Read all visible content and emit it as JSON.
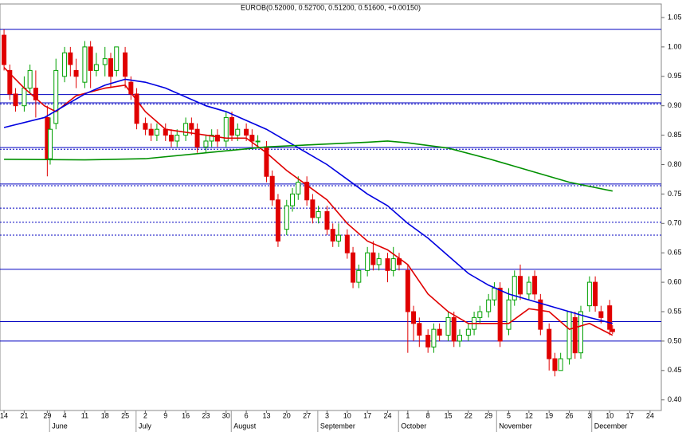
{
  "chart_data": {
    "type": "candlestick",
    "title": "EUROB(0.52000, 0.52700, 0.51200, 0.51600, +0.00150)",
    "x": [
      0,
      2,
      4,
      7,
      9,
      11,
      15,
      16,
      18,
      21,
      23,
      25,
      28,
      30,
      32,
      35,
      37,
      39,
      42,
      44,
      46,
      49,
      51,
      53,
      56,
      58,
      60,
      63,
      65,
      67,
      70,
      72,
      74,
      77,
      79,
      81,
      84,
      86,
      88,
      91,
      93,
      95,
      98,
      100,
      102,
      105,
      107,
      109,
      112,
      114,
      116,
      119,
      121,
      123,
      126,
      128,
      130,
      133,
      135,
      137,
      140,
      142,
      144,
      147,
      149,
      151,
      154,
      156,
      158,
      161,
      163,
      165,
      168,
      170,
      172,
      175,
      177,
      179,
      182,
      184,
      186,
      189,
      191,
      193,
      196,
      198,
      200,
      203,
      205,
      207,
      210,
      211
    ],
    "open": [
      1.02,
      0.96,
      0.92,
      0.9,
      0.93,
      0.93,
      0.88,
      0.81,
      0.87,
      0.95,
      0.99,
      0.96,
      0.94,
      1.0,
      0.96,
      0.97,
      0.98,
      0.96,
      0.99,
      0.94,
      0.92,
      0.87,
      0.86,
      0.85,
      0.86,
      0.85,
      0.84,
      0.85,
      0.87,
      0.86,
      0.83,
      0.84,
      0.85,
      0.84,
      0.88,
      0.85,
      0.86,
      0.85,
      0.84,
      0.83,
      0.78,
      0.74,
      0.69,
      0.73,
      0.75,
      0.77,
      0.74,
      0.71,
      0.72,
      0.69,
      0.67,
      0.68,
      0.65,
      0.6,
      0.62,
      0.65,
      0.63,
      0.64,
      0.62,
      0.64,
      0.62,
      0.55,
      0.53,
      0.51,
      0.49,
      0.52,
      0.51,
      0.54,
      0.5,
      0.51,
      0.52,
      0.54,
      0.55,
      0.57,
      0.59,
      0.52,
      0.57,
      0.61,
      0.58,
      0.61,
      0.57,
      0.52,
      0.47,
      0.45,
      0.47,
      0.54,
      0.48,
      0.56,
      0.6,
      0.55,
      0.56,
      0.52
    ],
    "high": [
      1.03,
      0.97,
      0.93,
      0.95,
      0.97,
      0.96,
      0.9,
      0.88,
      0.98,
      1.0,
      1.0,
      0.98,
      1.01,
      1.01,
      0.99,
      1.0,
      0.99,
      1.0,
      1.0,
      0.95,
      0.93,
      0.88,
      0.87,
      0.87,
      0.87,
      0.86,
      0.86,
      0.88,
      0.88,
      0.87,
      0.85,
      0.86,
      0.86,
      0.89,
      0.89,
      0.87,
      0.87,
      0.86,
      0.85,
      0.84,
      0.79,
      0.75,
      0.74,
      0.76,
      0.78,
      0.78,
      0.75,
      0.73,
      0.73,
      0.7,
      0.7,
      0.69,
      0.66,
      0.63,
      0.66,
      0.67,
      0.65,
      0.65,
      0.66,
      0.65,
      0.63,
      0.56,
      0.54,
      0.52,
      0.53,
      0.53,
      0.55,
      0.55,
      0.52,
      0.53,
      0.55,
      0.56,
      0.58,
      0.6,
      0.6,
      0.59,
      0.62,
      0.63,
      0.61,
      0.62,
      0.58,
      0.53,
      0.48,
      0.48,
      0.55,
      0.55,
      0.56,
      0.61,
      0.61,
      0.56,
      0.57,
      0.527
    ],
    "low": [
      0.96,
      0.91,
      0.89,
      0.89,
      0.92,
      0.88,
      0.78,
      0.8,
      0.86,
      0.94,
      0.95,
      0.93,
      0.93,
      0.93,
      0.95,
      0.95,
      0.93,
      0.95,
      0.93,
      0.91,
      0.86,
      0.85,
      0.84,
      0.84,
      0.84,
      0.83,
      0.83,
      0.84,
      0.85,
      0.82,
      0.82,
      0.83,
      0.83,
      0.83,
      0.84,
      0.84,
      0.84,
      0.83,
      0.83,
      0.77,
      0.73,
      0.66,
      0.68,
      0.72,
      0.74,
      0.73,
      0.7,
      0.7,
      0.68,
      0.66,
      0.66,
      0.64,
      0.59,
      0.59,
      0.61,
      0.62,
      0.62,
      0.6,
      0.61,
      0.62,
      0.48,
      0.5,
      0.49,
      0.48,
      0.48,
      0.5,
      0.5,
      0.49,
      0.49,
      0.5,
      0.51,
      0.53,
      0.54,
      0.56,
      0.49,
      0.51,
      0.56,
      0.57,
      0.57,
      0.57,
      0.51,
      0.45,
      0.44,
      0.45,
      0.46,
      0.47,
      0.47,
      0.55,
      0.55,
      0.53,
      0.51,
      0.512
    ],
    "close": [
      0.97,
      0.92,
      0.9,
      0.93,
      0.96,
      0.91,
      0.81,
      0.86,
      0.96,
      0.99,
      0.97,
      0.95,
      1.0,
      0.96,
      0.97,
      0.98,
      0.95,
      1.0,
      0.95,
      0.92,
      0.87,
      0.86,
      0.85,
      0.86,
      0.85,
      0.84,
      0.85,
      0.87,
      0.86,
      0.83,
      0.84,
      0.85,
      0.84,
      0.88,
      0.85,
      0.86,
      0.85,
      0.84,
      0.84,
      0.78,
      0.74,
      0.67,
      0.73,
      0.75,
      0.77,
      0.74,
      0.71,
      0.72,
      0.69,
      0.67,
      0.68,
      0.65,
      0.6,
      0.62,
      0.65,
      0.63,
      0.64,
      0.62,
      0.64,
      0.63,
      0.55,
      0.53,
      0.51,
      0.49,
      0.52,
      0.51,
      0.54,
      0.5,
      0.51,
      0.52,
      0.54,
      0.55,
      0.57,
      0.59,
      0.5,
      0.57,
      0.61,
      0.58,
      0.6,
      0.58,
      0.52,
      0.47,
      0.45,
      0.47,
      0.55,
      0.48,
      0.55,
      0.6,
      0.56,
      0.54,
      0.52,
      0.516
    ],
    "up_color": "#00a000",
    "down_color": "#e00000",
    "series": [
      {
        "color": "#e00000",
        "x": [
          0,
          7,
          14,
          18,
          25,
          35,
          42,
          49,
          56,
          63,
          70,
          77,
          84,
          91,
          98,
          105,
          112,
          119,
          126,
          133,
          140,
          147,
          154,
          161,
          168,
          175,
          182,
          189,
          196,
          203,
          211
        ],
        "values": [
          0.965,
          0.93,
          0.9,
          0.89,
          0.917,
          0.93,
          0.935,
          0.89,
          0.86,
          0.855,
          0.85,
          0.845,
          0.845,
          0.82,
          0.79,
          0.765,
          0.74,
          0.7,
          0.67,
          0.655,
          0.63,
          0.58,
          0.55,
          0.53,
          0.53,
          0.53,
          0.555,
          0.55,
          0.52,
          0.53,
          0.51
        ]
      },
      {
        "color": "#0000e0",
        "x": [
          0,
          14,
          21,
          28,
          35,
          42,
          49,
          56,
          63,
          70,
          77,
          84,
          91,
          98,
          105,
          112,
          119,
          126,
          133,
          140,
          147,
          154,
          161,
          168,
          175,
          182,
          189,
          196,
          203,
          211
        ],
        "values": [
          0.863,
          0.88,
          0.9,
          0.92,
          0.935,
          0.945,
          0.94,
          0.93,
          0.915,
          0.9,
          0.89,
          0.875,
          0.86,
          0.84,
          0.82,
          0.8,
          0.775,
          0.75,
          0.73,
          0.7,
          0.675,
          0.645,
          0.615,
          0.595,
          0.58,
          0.57,
          0.56,
          0.55,
          0.54,
          0.53
        ]
      },
      {
        "color": "#009000",
        "x": [
          0,
          28,
          49,
          70,
          91,
          112,
          126,
          133,
          140,
          154,
          168,
          182,
          196,
          211
        ],
        "values": [
          0.809,
          0.808,
          0.81,
          0.82,
          0.83,
          0.835,
          0.838,
          0.84,
          0.837,
          0.828,
          0.81,
          0.79,
          0.77,
          0.755
        ]
      }
    ],
    "levels": [
      {
        "value": 1.03,
        "style": "solid"
      },
      {
        "value": 0.919,
        "style": "solid"
      },
      {
        "value": 0.905,
        "style": "solid"
      },
      {
        "value": 0.903,
        "style": "dotted"
      },
      {
        "value": 0.829,
        "style": "solid"
      },
      {
        "value": 0.826,
        "style": "dotted"
      },
      {
        "value": 0.767,
        "style": "solid"
      },
      {
        "value": 0.764,
        "style": "dotted"
      },
      {
        "value": 0.726,
        "style": "dotted"
      },
      {
        "value": 0.702,
        "style": "dotted"
      },
      {
        "value": 0.68,
        "style": "dotted"
      },
      {
        "value": 0.622,
        "style": "solid"
      },
      {
        "value": 0.533,
        "style": "solid"
      },
      {
        "value": 0.5,
        "style": "solid"
      }
    ],
    "level_color": "#0000c0",
    "xlim": [
      -1.4,
      227.9
    ],
    "ylim": [
      0.382,
      1.073
    ],
    "yticks": [
      {
        "value": 0.4,
        "label": "0.40"
      },
      {
        "value": 0.45,
        "label": "0.45"
      },
      {
        "value": 0.5,
        "label": "0.50"
      },
      {
        "value": 0.55,
        "label": "0.55"
      },
      {
        "value": 0.6,
        "label": "0.60"
      },
      {
        "value": 0.65,
        "label": "0.65"
      },
      {
        "value": 0.7,
        "label": "0.70"
      },
      {
        "value": 0.75,
        "label": "0.75"
      },
      {
        "value": 0.8,
        "label": "0.80"
      },
      {
        "value": 0.85,
        "label": "0.85"
      },
      {
        "value": 0.9,
        "label": "0.90"
      },
      {
        "value": 0.95,
        "label": "0.95"
      },
      {
        "value": 1.0,
        "label": "1.00"
      },
      {
        "value": 1.05,
        "label": "1.05"
      }
    ],
    "xticks": [
      {
        "value": 0,
        "label": "14"
      },
      {
        "value": 7,
        "label": "21"
      },
      {
        "value": 15,
        "label": "29"
      },
      {
        "value": 21,
        "label": "4"
      },
      {
        "value": 28,
        "label": "11"
      },
      {
        "value": 35,
        "label": "18"
      },
      {
        "value": 42,
        "label": "25"
      },
      {
        "value": 49,
        "label": "2"
      },
      {
        "value": 56,
        "label": "9"
      },
      {
        "value": 63,
        "label": "16"
      },
      {
        "value": 70,
        "label": "23"
      },
      {
        "value": 77,
        "label": "30"
      },
      {
        "value": 84,
        "label": "6"
      },
      {
        "value": 91,
        "label": "13"
      },
      {
        "value": 98,
        "label": "20"
      },
      {
        "value": 105,
        "label": "27"
      },
      {
        "value": 112,
        "label": "3"
      },
      {
        "value": 119,
        "label": "10"
      },
      {
        "value": 126,
        "label": "17"
      },
      {
        "value": 133,
        "label": "24"
      },
      {
        "value": 140,
        "label": "1"
      },
      {
        "value": 147,
        "label": "8"
      },
      {
        "value": 154,
        "label": "15"
      },
      {
        "value": 161,
        "label": "22"
      },
      {
        "value": 168,
        "label": "29"
      },
      {
        "value": 175,
        "label": "5"
      },
      {
        "value": 182,
        "label": "12"
      },
      {
        "value": 189,
        "label": "19"
      },
      {
        "value": 196,
        "label": "26"
      },
      {
        "value": 203,
        "label": "3"
      },
      {
        "value": 210,
        "label": "10"
      },
      {
        "value": 217,
        "label": "17"
      },
      {
        "value": 224,
        "label": "24"
      }
    ],
    "months": [
      {
        "value": 18,
        "label": "June"
      },
      {
        "value": 48,
        "label": "July"
      },
      {
        "value": 81,
        "label": "August"
      },
      {
        "value": 111,
        "label": "September"
      },
      {
        "value": 139,
        "label": "October"
      },
      {
        "value": 173,
        "label": "November"
      },
      {
        "value": 206,
        "label": "December"
      }
    ]
  }
}
